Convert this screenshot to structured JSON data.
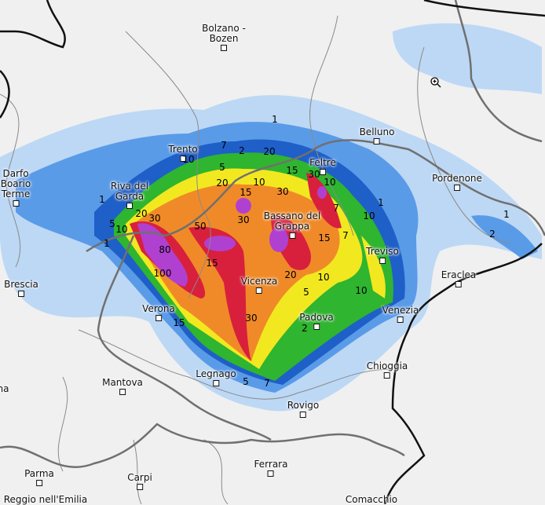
{
  "map": {
    "cities": [
      "Bolzano - Bozen",
      "Trento",
      "Belluno",
      "Feltre",
      "Pordenone",
      "Darfo Boario Terme",
      "Riva del Garda",
      "Bassano del Grappa",
      "Treviso",
      "Eraclea",
      "Brescia",
      "Vicenza",
      "Verona",
      "Padova",
      "Venezia",
      "Chioggia",
      "Legnago",
      "Mantova",
      "Rovigo",
      "Ferrara",
      "Parma",
      "Carpi",
      "Reggio nell'Emilia",
      "Comacchio",
      "na"
    ],
    "contour_labels": [
      "1",
      "7",
      "2",
      "20",
      "10",
      "15",
      "30",
      "10",
      "5",
      "20",
      "15",
      "10",
      "30",
      "7",
      "1",
      "10",
      "1",
      "2",
      "1",
      "20",
      "30",
      "5",
      "10",
      "50",
      "30",
      "15",
      "80",
      "100",
      "15",
      "30",
      "20",
      "10",
      "5",
      "2",
      "15",
      "5",
      "7",
      "1",
      "10",
      "7"
    ],
    "colors": {
      "background": "#f0f0f0",
      "light_rain": "#bcd8f5",
      "rain": "#5a9be8",
      "heavy": "#1f5fc8",
      "green": "#2fb52f",
      "yellow": "#f2e820",
      "orange": "#f08a28",
      "red": "#d8203c",
      "purple": "#b040d0"
    },
    "cursor_icon": "zoom-in-icon"
  }
}
